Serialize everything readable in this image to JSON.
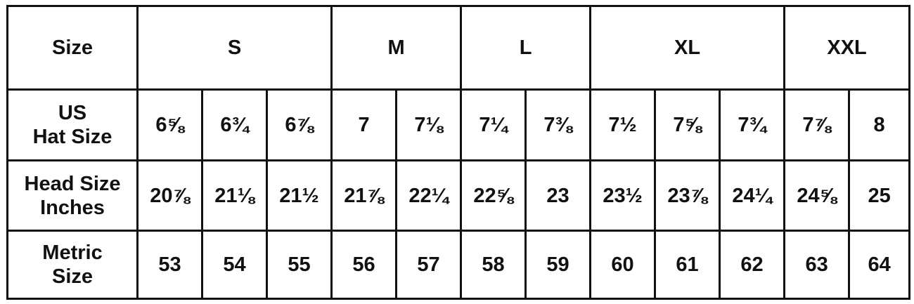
{
  "table": {
    "header": {
      "label": "Size",
      "groups": [
        {
          "label": "S",
          "span": 3
        },
        {
          "label": "M",
          "span": 2
        },
        {
          "label": "L",
          "span": 2
        },
        {
          "label": "XL",
          "span": 3
        },
        {
          "label": "XXL",
          "span": 2
        }
      ]
    },
    "rows": [
      {
        "label_lines": [
          "US",
          "Hat Size"
        ],
        "values": [
          "6⅝",
          "6¾",
          "6⅞",
          "7",
          "7⅛",
          "7¼",
          "7⅜",
          "7½",
          "7⅝",
          "7¾",
          "7⅞",
          "8"
        ]
      },
      {
        "label_lines": [
          "Head Size",
          "Inches"
        ],
        "values": [
          "20⅞",
          "21⅛",
          "21½",
          "21⅞",
          "22¼",
          "22⅝",
          "23",
          "23½",
          "23⅞",
          "24¼",
          "24⅝",
          "25"
        ]
      },
      {
        "label_lines": [
          "Metric",
          "Size"
        ],
        "values": [
          "53",
          "54",
          "55",
          "56",
          "57",
          "58",
          "59",
          "60",
          "61",
          "62",
          "63",
          "64"
        ]
      }
    ]
  }
}
